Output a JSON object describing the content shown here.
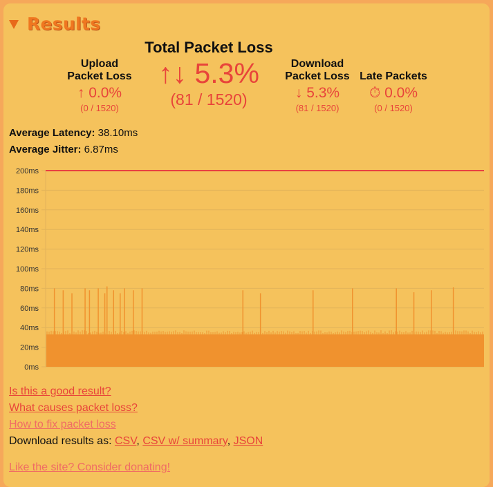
{
  "header": {
    "title": "Results"
  },
  "total": {
    "title": "Total Packet Loss",
    "icon": "↑↓",
    "value": "5.3%",
    "counts": "(81 / 1520)"
  },
  "upload": {
    "label": "Upload Packet Loss",
    "icon": "↑",
    "value": "0.0%",
    "counts": "(0 / 1520)"
  },
  "download": {
    "label": "Download Packet Loss",
    "icon": "↓",
    "value": "5.3%",
    "counts": "(81 / 1520)"
  },
  "late": {
    "label": "Late Packets",
    "icon": "⏱",
    "value": "0.0%",
    "counts": "(0 / 1520)"
  },
  "latency": {
    "label": "Average Latency:",
    "value": "38.10ms"
  },
  "jitter": {
    "label": "Average Jitter:",
    "value": "6.87ms"
  },
  "chart_data": {
    "type": "area",
    "ylim": [
      0,
      200
    ],
    "yticks": [
      "0ms",
      "20ms",
      "40ms",
      "60ms",
      "80ms",
      "100ms",
      "120ms",
      "140ms",
      "160ms",
      "180ms",
      "200ms"
    ],
    "baseline_ms": 33,
    "threshold_ms": 200,
    "spikes": [
      {
        "x": 0.02,
        "y": 80
      },
      {
        "x": 0.04,
        "y": 78
      },
      {
        "x": 0.06,
        "y": 75
      },
      {
        "x": 0.09,
        "y": 80
      },
      {
        "x": 0.1,
        "y": 78
      },
      {
        "x": 0.12,
        "y": 80
      },
      {
        "x": 0.135,
        "y": 75
      },
      {
        "x": 0.14,
        "y": 82
      },
      {
        "x": 0.155,
        "y": 78
      },
      {
        "x": 0.17,
        "y": 75
      },
      {
        "x": 0.18,
        "y": 80
      },
      {
        "x": 0.2,
        "y": 78
      },
      {
        "x": 0.22,
        "y": 80
      },
      {
        "x": 0.45,
        "y": 78
      },
      {
        "x": 0.49,
        "y": 75
      },
      {
        "x": 0.61,
        "y": 78
      },
      {
        "x": 0.7,
        "y": 80
      },
      {
        "x": 0.8,
        "y": 80
      },
      {
        "x": 0.84,
        "y": 76
      },
      {
        "x": 0.88,
        "y": 78
      },
      {
        "x": 0.93,
        "y": 81
      }
    ],
    "colors": {
      "area": "#f0922e",
      "threshold": "#e84040",
      "grid": "#e2b35a"
    }
  },
  "links": {
    "good": "Is this a good result?",
    "causes": "What causes packet loss?",
    "fix": "How to fix packet loss",
    "download_prefix": "Download results as:",
    "csv": "CSV",
    "csv_summary": "CSV w/ summary",
    "json": "JSON",
    "donate": "Like the site? Consider donating!"
  }
}
